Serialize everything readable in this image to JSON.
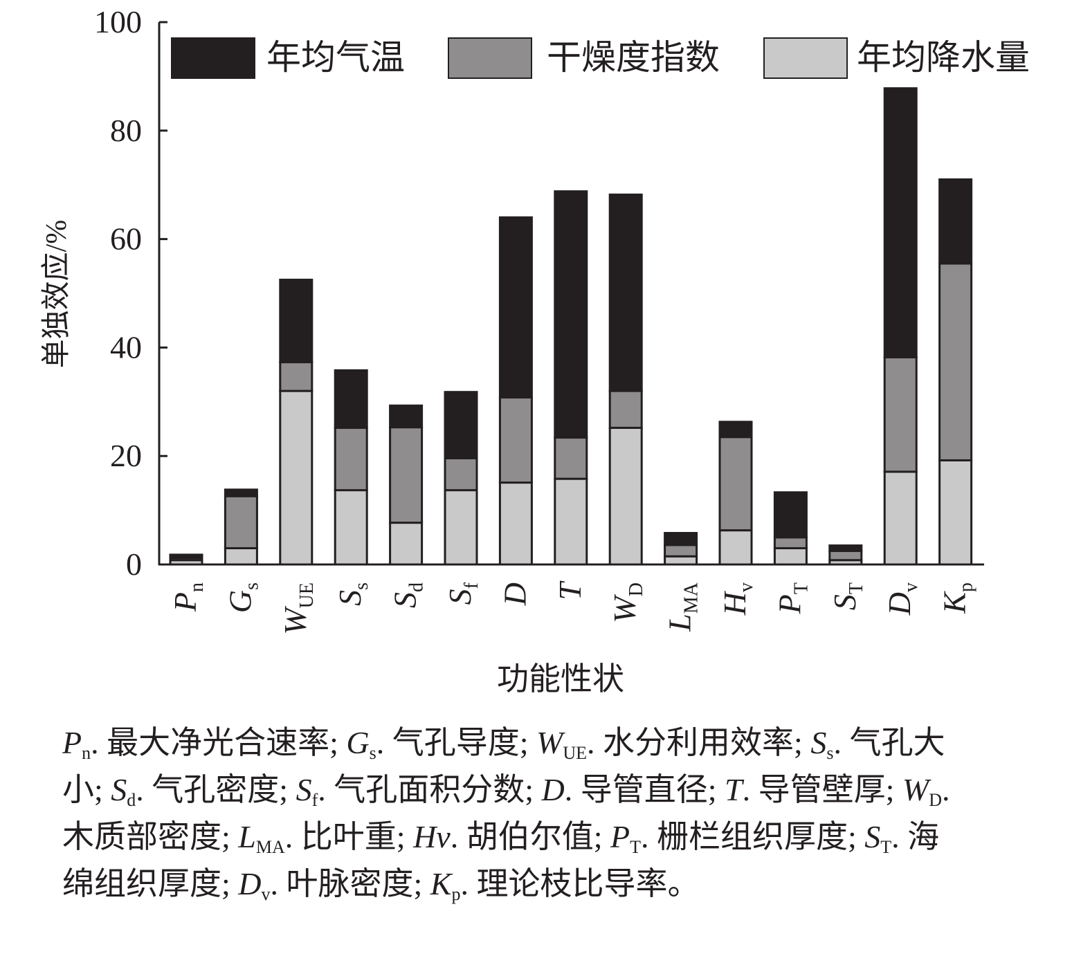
{
  "chart_data": {
    "type": "bar",
    "stacked": true,
    "ylabel": "单独效应/%",
    "xlabel": "功能性状",
    "ylim": [
      0,
      100
    ],
    "yticks": [
      "0",
      "20",
      "40",
      "60",
      "80",
      "100"
    ],
    "legend_position": "top",
    "categories": [
      {
        "main": "P",
        "sub": "n"
      },
      {
        "main": "G",
        "sub": "s"
      },
      {
        "main": "W",
        "sub": "UE"
      },
      {
        "main": "S",
        "sub": "s"
      },
      {
        "main": "S",
        "sub": "d"
      },
      {
        "main": "S",
        "sub": "f"
      },
      {
        "main": "D",
        "sub": ""
      },
      {
        "main": "T",
        "sub": ""
      },
      {
        "main": "W",
        "sub": "D"
      },
      {
        "main": "L",
        "sub": "MA"
      },
      {
        "main": "H",
        "sub": "v"
      },
      {
        "main": "P",
        "sub": "T"
      },
      {
        "main": "S",
        "sub": "T"
      },
      {
        "main": "D",
        "sub": "v"
      },
      {
        "main": "K",
        "sub": "p"
      }
    ],
    "series": [
      {
        "name": "年均降水量",
        "color": "#c9c9c9",
        "values": [
          0.8,
          3.0,
          32.0,
          13.7,
          7.7,
          13.7,
          15.1,
          15.8,
          25.2,
          1.5,
          6.3,
          3.0,
          0.8,
          17.1,
          19.2
        ]
      },
      {
        "name": "干燥度指数",
        "color": "#8f8d8e",
        "values": [
          0.4,
          9.6,
          5.3,
          11.5,
          17.6,
          5.9,
          15.7,
          7.6,
          6.8,
          2.1,
          17.2,
          2.0,
          1.7,
          21.1,
          36.3
        ]
      },
      {
        "name": "年均气温",
        "color": "#231f20",
        "values": [
          0.6,
          1.2,
          15.2,
          10.6,
          4.0,
          12.2,
          33.2,
          45.4,
          36.2,
          2.2,
          2.8,
          8.3,
          1.0,
          49.6,
          15.5
        ]
      }
    ],
    "legend_order": [
      "年均气温",
      "干燥度指数",
      "年均降水量"
    ]
  },
  "caption": [
    {
      "sym": "P",
      "sub": "n",
      "desc": "最大净光合速率"
    },
    {
      "sym": "G",
      "sub": "s",
      "desc": "气孔导度"
    },
    {
      "sym": "W",
      "sub": "UE",
      "desc": "水分利用效率"
    },
    {
      "sym": "S",
      "sub": "s",
      "desc": "气孔大小"
    },
    {
      "sym": "S",
      "sub": "d",
      "desc": "气孔密度"
    },
    {
      "sym": "S",
      "sub": "f",
      "desc": "气孔面积分数"
    },
    {
      "sym": "D",
      "sub": "",
      "desc": "导管直径"
    },
    {
      "sym": "T",
      "sub": "",
      "desc": "导管壁厚"
    },
    {
      "sym": "W",
      "sub": "D",
      "desc": "木质部密度"
    },
    {
      "sym": "L",
      "sub": "MA",
      "desc": "比叶重"
    },
    {
      "sym": "Hv",
      "sub": "",
      "desc": "胡伯尔值"
    },
    {
      "sym": "P",
      "sub": "T",
      "desc": "栅栏组织厚度"
    },
    {
      "sym": "S",
      "sub": "T",
      "desc": "海绵组织厚度"
    },
    {
      "sym": "D",
      "sub": "v",
      "desc": "叶脉密度"
    },
    {
      "sym": "K",
      "sub": "p",
      "desc": "理论枝比导率"
    }
  ]
}
